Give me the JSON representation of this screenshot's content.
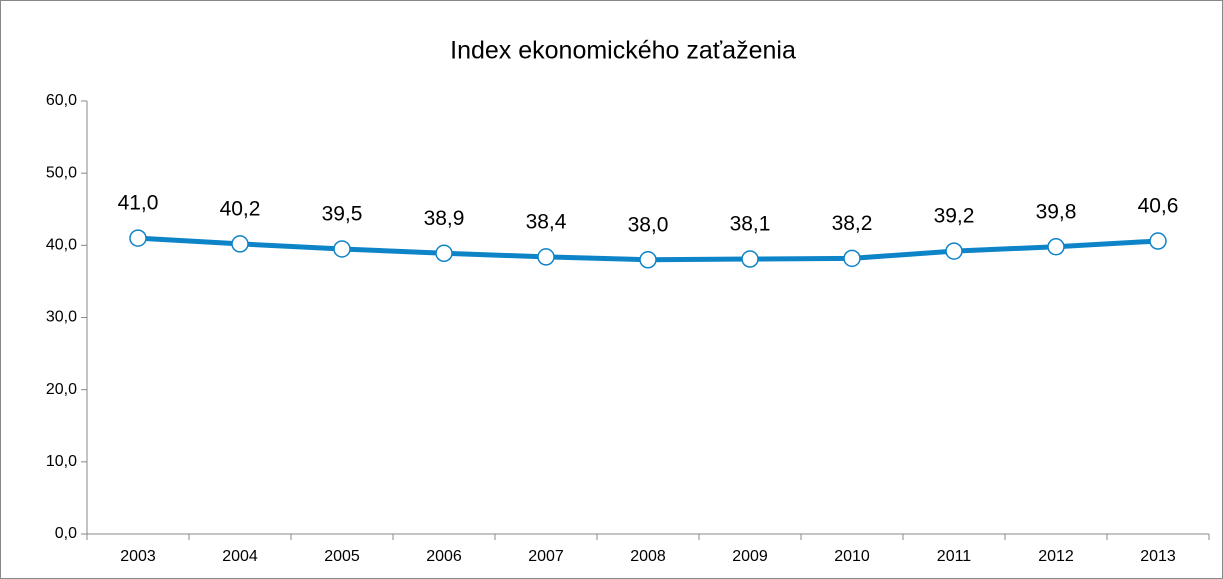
{
  "chart_data": {
    "type": "line",
    "title": "Index ekonomického zaťaženia",
    "categories": [
      "2003",
      "2004",
      "2005",
      "2006",
      "2007",
      "2008",
      "2009",
      "2010",
      "2011",
      "2012",
      "2013"
    ],
    "series": [
      {
        "name": "Index ekonomického zaťaženia",
        "color": "#0e84c8",
        "values": [
          41.0,
          40.2,
          39.5,
          38.9,
          38.4,
          38.0,
          38.1,
          38.2,
          39.2,
          39.8,
          40.6
        ],
        "value_labels": [
          "41,0",
          "40,2",
          "39,5",
          "38,9",
          "38,4",
          "38,0",
          "38,1",
          "38,2",
          "39,2",
          "39,8",
          "40,6"
        ]
      }
    ],
    "ylim": [
      0,
      60
    ],
    "yticks": [
      {
        "value": 0,
        "label": "0,0"
      },
      {
        "value": 10,
        "label": "10,0"
      },
      {
        "value": 20,
        "label": "20,0"
      },
      {
        "value": 30,
        "label": "30,0"
      },
      {
        "value": 40,
        "label": "40,0"
      },
      {
        "value": 50,
        "label": "50,0"
      },
      {
        "value": 60,
        "label": "60,0"
      }
    ],
    "grid": false
  }
}
